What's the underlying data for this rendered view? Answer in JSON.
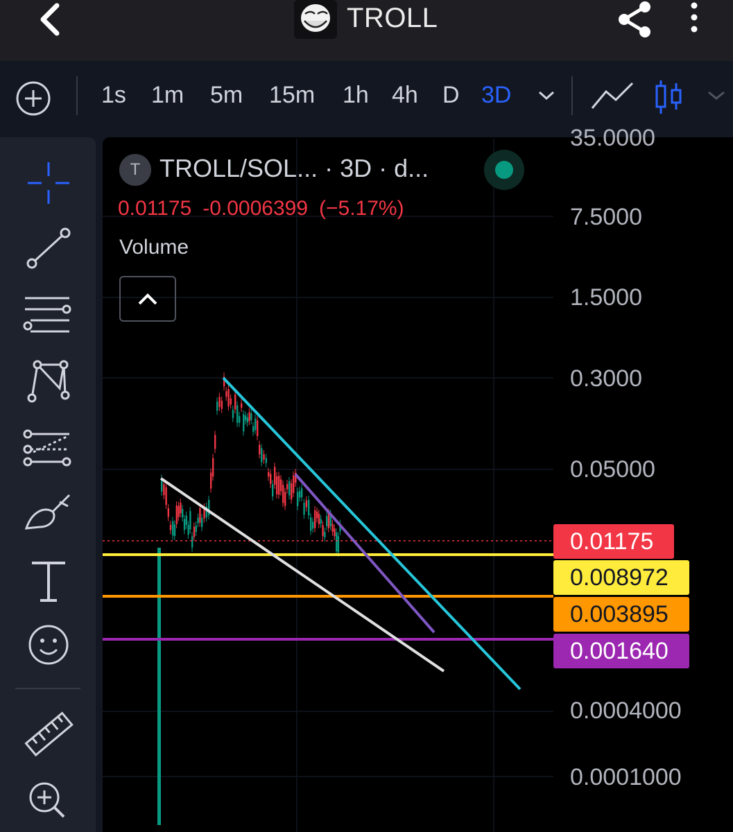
{
  "header": {
    "title": "TROLL",
    "icons": [
      "back-arrow-icon",
      "troll-face-logo-icon",
      "share-icon",
      "more-vertical-icon"
    ]
  },
  "timeframes": {
    "items": [
      "1s",
      "1m",
      "5m",
      "15m",
      "1h",
      "4h",
      "D",
      "3D"
    ],
    "active": "3D",
    "active_color": "#2962ff"
  },
  "legend": {
    "badge": "T",
    "title": "TROLL/SOL... · 3D · d...",
    "close": "0.01175",
    "change": "-0.0006399",
    "change_pct": "(−5.17%)",
    "volume_label": "Volume"
  },
  "price_scale": {
    "labels": [
      "35.0000",
      "7.5000",
      "1.5000",
      "0.3000",
      "0.05000",
      "0.0004000",
      "0.0001000"
    ],
    "scale": "log"
  },
  "price_tags": [
    {
      "value": "0.01175",
      "bg": "#f23645",
      "fg": "#ffffff"
    },
    {
      "value": "0.008972",
      "bg": "#ffeb3b",
      "fg": "#131722"
    },
    {
      "value": "0.003895",
      "bg": "#ff9800",
      "fg": "#131722"
    },
    {
      "value": "0.001640",
      "bg": "#9c27b0",
      "fg": "#ffffff"
    }
  ],
  "lines": {
    "horizontal_colors": [
      "#ffeb3b",
      "#ff9800",
      "#9c27b0"
    ],
    "trend_colors": [
      "#e0e0e0",
      "#7e57c2",
      "#26c6da"
    ]
  },
  "left_tools": [
    "crosshair-icon",
    "trend-line-icon",
    "horizontal-lines-icon",
    "pattern-icon",
    "projection-icon",
    "brush-icon",
    "text-tool-icon",
    "emoji-icon",
    "ruler-icon",
    "zoom-in-icon"
  ],
  "colors": {
    "up": "#089981",
    "down": "#f23645"
  }
}
